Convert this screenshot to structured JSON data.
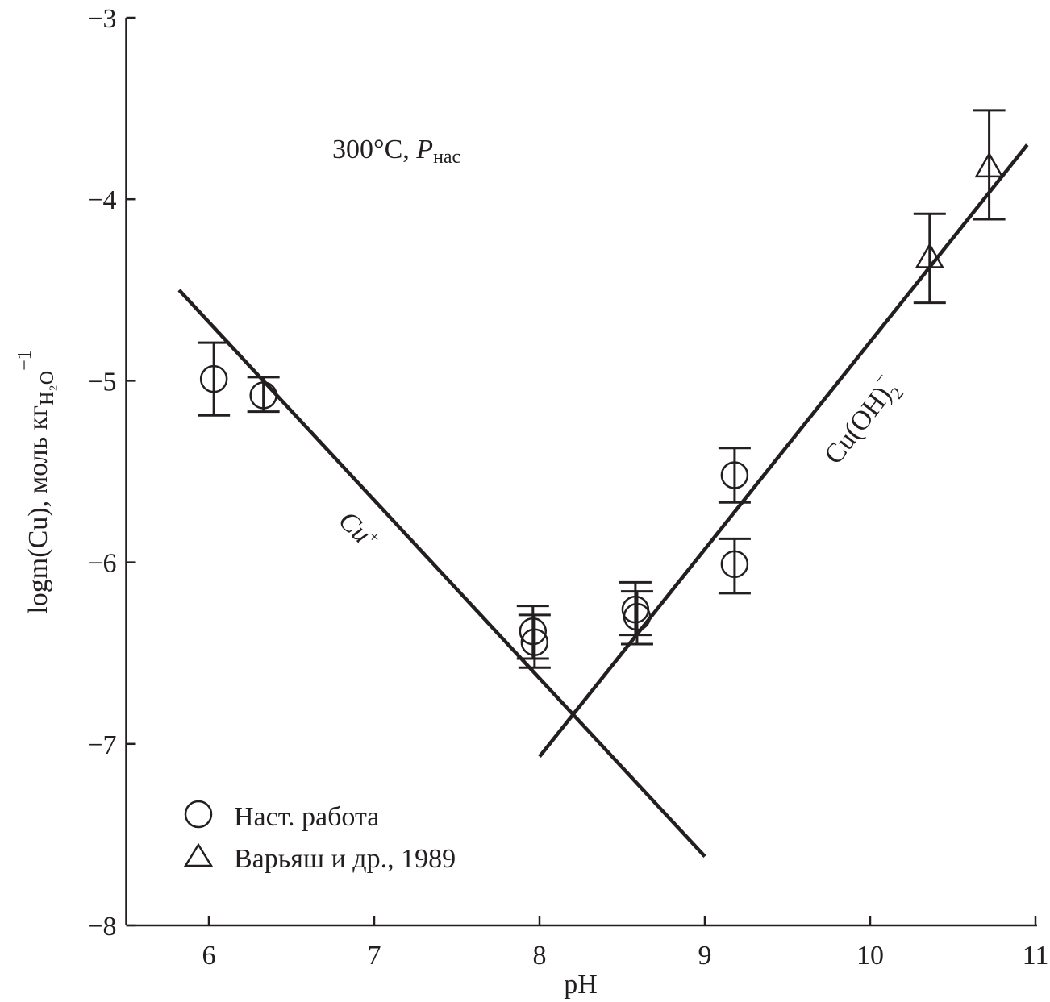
{
  "chart_data": {
    "type": "scatter",
    "title": "",
    "annotation": {
      "text": "300°C, ",
      "p": "P",
      "p_sub": "нас"
    },
    "xlabel": "pH",
    "ylabel": {
      "main": "logm(Cu), моль кг",
      "sub": "H₂O",
      "sup": "−1"
    },
    "xlim": [
      5.5,
      11
    ],
    "ylim": [
      -8,
      -3
    ],
    "xticks": [
      6,
      7,
      8,
      9,
      10,
      11
    ],
    "yticks": [
      -3,
      -4,
      -5,
      -6,
      -7,
      -8
    ],
    "ytick_labels": [
      "−3",
      "−4",
      "−5",
      "−6",
      "−7",
      "−8"
    ],
    "grid": false,
    "legend": {
      "placement": "bottom-left",
      "entries": [
        {
          "marker": "circle",
          "label": "Наст. работа"
        },
        {
          "marker": "triangle",
          "label": "Варьяш и др., 1989"
        }
      ]
    },
    "series": [
      {
        "name": "Наст. работа",
        "marker": "circle",
        "points": [
          {
            "x": 6.03,
            "y": -4.99,
            "ylo": -5.19,
            "yhi": -4.79
          },
          {
            "x": 6.33,
            "y": -5.08,
            "ylo": -5.17,
            "yhi": -4.98
          },
          {
            "x": 7.96,
            "y": -6.38,
            "ylo": -6.53,
            "yhi": -6.24
          },
          {
            "x": 7.97,
            "y": -6.44,
            "ylo": -6.58,
            "yhi": -6.29
          },
          {
            "x": 8.58,
            "y": -6.26,
            "ylo": -6.4,
            "yhi": -6.11
          },
          {
            "x": 8.59,
            "y": -6.3,
            "ylo": -6.45,
            "yhi": -6.16
          },
          {
            "x": 9.18,
            "y": -5.52,
            "ylo": -5.67,
            "yhi": -5.37
          },
          {
            "x": 9.18,
            "y": -6.01,
            "ylo": -6.17,
            "yhi": -5.87
          }
        ]
      },
      {
        "name": "Варьяш и др., 1989",
        "marker": "triangle",
        "points": [
          {
            "x": 10.36,
            "y": -4.33,
            "ylo": -4.57,
            "yhi": -4.08
          },
          {
            "x": 10.72,
            "y": -3.83,
            "ylo": -4.11,
            "yhi": -3.51
          }
        ]
      }
    ],
    "lines": [
      {
        "label": "Cu",
        "label_sup": "+",
        "points": [
          [
            5.82,
            -4.5
          ],
          [
            9.0,
            -7.62
          ]
        ]
      },
      {
        "label": "Cu(OH)",
        "label_sub": "2",
        "label_sup": "−",
        "points": [
          [
            8.0,
            -7.07
          ],
          [
            10.95,
            -3.7
          ]
        ]
      }
    ],
    "colors": {
      "ink": "#231f20",
      "background": "#ffffff"
    }
  }
}
